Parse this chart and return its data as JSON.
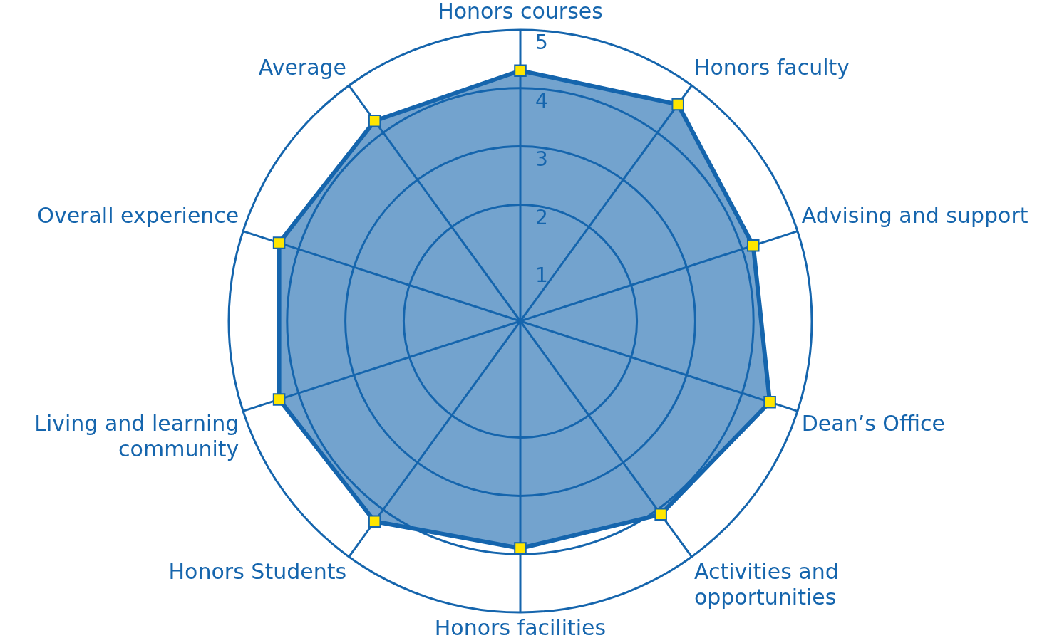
{
  "chart_data": {
    "type": "radar",
    "categories": [
      "Honors courses",
      "Honors faculty",
      "Advising and support",
      "Dean’s Office",
      "Activities and opportunities",
      "Honors facilities",
      "Honors Students",
      "Living and learning community",
      "Overall experience",
      "Average"
    ],
    "series": [
      {
        "color": "#1565ad",
        "values": [
          4.3,
          4.6,
          4.2,
          4.5,
          4.1,
          3.9,
          4.25,
          4.35,
          4.35,
          4.25
        ]
      }
    ],
    "ylim": [
      0,
      5
    ],
    "yticks": [
      1,
      2,
      3,
      4,
      5
    ],
    "grid": true,
    "marker": "square",
    "legend": false
  }
}
